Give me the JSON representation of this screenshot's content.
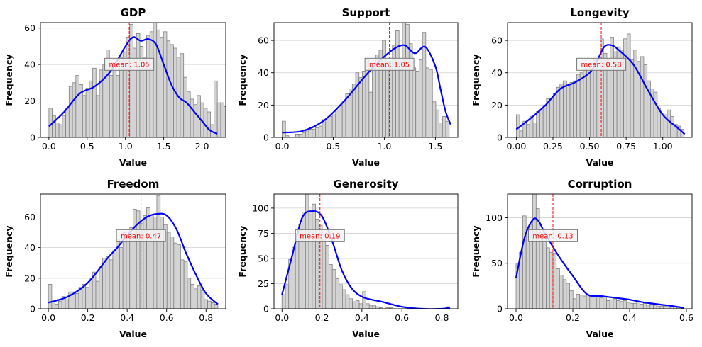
{
  "figure": {
    "colors": {
      "bar_fill": "#d3d3d3",
      "bar_edge": "#808080",
      "kde_line": "#0000ff",
      "mean_line": "#ff0000",
      "grid": "#d0d0d0",
      "mean_box_edge": "#777777",
      "mean_box_fill": "#f4f4f4"
    }
  },
  "chart_data": [
    {
      "type": "histogram",
      "title": "GDP",
      "xlabel": "Value",
      "ylabel": "Frequency",
      "xlim": [
        -0.11,
        2.31
      ],
      "ylim": [
        0,
        63
      ],
      "xticks": [
        0.0,
        0.5,
        1.0,
        1.5,
        2.0
      ],
      "xtick_labels": [
        "0.0",
        "0.5",
        "1.0",
        "1.5",
        "2.0"
      ],
      "yticks": [
        0,
        20,
        40,
        60
      ],
      "ytick_labels": [
        "0",
        "20",
        "40",
        "60"
      ],
      "grid": "horizontal",
      "mean": 1.05,
      "mean_label": "mean: 1.05",
      "bins": {
        "start": 0.0,
        "width": 0.044
      },
      "counts": [
        16,
        12,
        8,
        7,
        12,
        16,
        28,
        30,
        34,
        29,
        23,
        27,
        31,
        38,
        23,
        37,
        40,
        48,
        34,
        41,
        34,
        44,
        47,
        55,
        62,
        49,
        57,
        50,
        44,
        56,
        58,
        63,
        59,
        55,
        58,
        53,
        51,
        49,
        44,
        46,
        33,
        25,
        21,
        18,
        23,
        19,
        16,
        14,
        7,
        31,
        19,
        19,
        17,
        14,
        8,
        11,
        5,
        11
      ],
      "kde": {
        "x": [
          0.0,
          0.2,
          0.4,
          0.6,
          0.8,
          1.0,
          1.1,
          1.2,
          1.3,
          1.4,
          1.5,
          1.6,
          1.7,
          1.8,
          1.9,
          2.0,
          2.1,
          2.2
        ],
        "y": [
          6,
          14,
          24,
          28,
          36,
          50,
          55,
          53,
          54,
          51,
          40,
          29,
          22,
          19,
          14,
          9,
          4,
          2
        ]
      }
    },
    {
      "type": "histogram",
      "title": "Support",
      "xlabel": "Value",
      "ylabel": "Frequency",
      "xlim": [
        -0.08,
        1.72
      ],
      "ylim": [
        0,
        71
      ],
      "xticks": [
        0.0,
        0.5,
        1.0,
        1.5
      ],
      "xtick_labels": [
        "0.0",
        "0.5",
        "1.0",
        "1.5"
      ],
      "yticks": [
        0,
        20,
        40,
        60
      ],
      "ytick_labels": [
        "0",
        "20",
        "40",
        "60"
      ],
      "grid": "horizontal",
      "mean": 1.05,
      "mean_label": "mean: 1.05",
      "bins": {
        "start": 0.0,
        "width": 0.0327
      },
      "counts": [
        10,
        1,
        0,
        0,
        2,
        2,
        3,
        4,
        5,
        5,
        6,
        7,
        11,
        12,
        13,
        14,
        17,
        20,
        22,
        27,
        30,
        33,
        40,
        37,
        41,
        48,
        28,
        43,
        51,
        54,
        60,
        47,
        47,
        57,
        66,
        47,
        71,
        70,
        58,
        43,
        41,
        48,
        65,
        43,
        42,
        22,
        17,
        9,
        13,
        10
      ],
      "kde": {
        "x": [
          0.0,
          0.2,
          0.4,
          0.6,
          0.8,
          0.9,
          1.0,
          1.1,
          1.2,
          1.3,
          1.4,
          1.5,
          1.55,
          1.6,
          1.65
        ],
        "y": [
          3,
          4,
          10,
          22,
          37,
          44,
          50,
          55,
          57,
          52,
          56,
          44,
          30,
          16,
          8
        ]
      }
    },
    {
      "type": "histogram",
      "title": "Longevity",
      "xlabel": "Value",
      "ylabel": "Frequency",
      "xlim": [
        -0.06,
        1.2
      ],
      "ylim": [
        0,
        71
      ],
      "xticks": [
        0.0,
        0.25,
        0.5,
        0.75,
        1.0
      ],
      "xtick_labels": [
        "0.00",
        "0.25",
        "0.50",
        "0.75",
        "1.00"
      ],
      "yticks": [
        0,
        20,
        40,
        60
      ],
      "ytick_labels": [
        "0",
        "20",
        "40",
        "60"
      ],
      "grid": "horizontal",
      "mean": 0.58,
      "mean_label": "mean: 0.58",
      "bins": {
        "start": 0.0,
        "width": 0.0229
      },
      "counts": [
        14,
        4,
        10,
        8,
        13,
        9,
        16,
        17,
        20,
        24,
        24,
        27,
        31,
        33,
        35,
        33,
        34,
        35,
        39,
        40,
        42,
        44,
        42,
        48,
        48,
        61,
        52,
        48,
        62,
        53,
        56,
        54,
        61,
        64,
        48,
        54,
        47,
        50,
        45,
        35,
        30,
        28,
        18,
        15,
        14,
        17,
        13,
        8,
        7,
        5
      ],
      "kde": {
        "x": [
          0.0,
          0.1,
          0.2,
          0.3,
          0.4,
          0.5,
          0.55,
          0.6,
          0.65,
          0.7,
          0.8,
          0.9,
          1.0,
          1.1,
          1.15
        ],
        "y": [
          5,
          12,
          20,
          30,
          34,
          40,
          47,
          56,
          57,
          54,
          45,
          29,
          14,
          6,
          2
        ]
      }
    },
    {
      "type": "histogram",
      "title": "Freedom",
      "xlabel": "Value",
      "ylabel": "Frequency",
      "xlim": [
        -0.04,
        0.9
      ],
      "ylim": [
        0,
        75
      ],
      "xticks": [
        0.0,
        0.2,
        0.4,
        0.6,
        0.8
      ],
      "xtick_labels": [
        "0.0",
        "0.2",
        "0.4",
        "0.6",
        "0.8"
      ],
      "yticks": [
        0,
        20,
        40,
        60
      ],
      "ytick_labels": [
        "0",
        "20",
        "40",
        "60"
      ],
      "grid": "horizontal",
      "mean": 0.47,
      "mean_label": "mean: 0.47",
      "bins": {
        "start": 0.0,
        "width": 0.0172
      },
      "counts": [
        16,
        5,
        3,
        5,
        8,
        6,
        11,
        11,
        10,
        14,
        16,
        14,
        20,
        24,
        18,
        28,
        33,
        34,
        32,
        38,
        45,
        40,
        50,
        47,
        53,
        65,
        64,
        56,
        61,
        66,
        61,
        60,
        74,
        60,
        55,
        50,
        47,
        43,
        42,
        32,
        31,
        20,
        16,
        13,
        15,
        12,
        6,
        5,
        4,
        3
      ],
      "kde": {
        "x": [
          0.0,
          0.1,
          0.2,
          0.3,
          0.35,
          0.4,
          0.45,
          0.5,
          0.55,
          0.6,
          0.65,
          0.7,
          0.75,
          0.8,
          0.86
        ],
        "y": [
          4,
          8,
          17,
          33,
          40,
          48,
          55,
          60,
          62,
          61,
          52,
          36,
          22,
          10,
          3
        ]
      }
    },
    {
      "type": "histogram",
      "title": "Generosity",
      "xlabel": "Value",
      "ylabel": "Frequency",
      "xlim": [
        -0.04,
        0.88
      ],
      "ylim": [
        0,
        114
      ],
      "xticks": [
        0.0,
        0.2,
        0.4,
        0.6,
        0.8
      ],
      "xtick_labels": [
        "0.0",
        "0.2",
        "0.4",
        "0.6",
        "0.8"
      ],
      "yticks": [
        0,
        25,
        50,
        75,
        100
      ],
      "ytick_labels": [
        "0",
        "25",
        "50",
        "75",
        "100"
      ],
      "grid": "horizontal",
      "mean": 0.19,
      "mean_label": "mean: 0.19",
      "bins": {
        "start": 0.0,
        "width": 0.0168
      },
      "counts": [
        14,
        24,
        49,
        61,
        69,
        84,
        96,
        114,
        97,
        104,
        89,
        83,
        69,
        63,
        44,
        39,
        30,
        24,
        19,
        14,
        10,
        7,
        8,
        5,
        17,
        5,
        3,
        3,
        2,
        1,
        0,
        1,
        1,
        0,
        0,
        0,
        0,
        0,
        0,
        1,
        0,
        0,
        0,
        0,
        0,
        0,
        0,
        0,
        0,
        2
      ],
      "kde": {
        "x": [
          0.0,
          0.05,
          0.1,
          0.15,
          0.2,
          0.25,
          0.3,
          0.35,
          0.4,
          0.45,
          0.5,
          0.6,
          0.7,
          0.8,
          0.84
        ],
        "y": [
          14,
          52,
          90,
          97,
          92,
          68,
          38,
          20,
          12,
          9,
          7,
          2,
          0,
          0,
          1
        ]
      }
    },
    {
      "type": "histogram",
      "title": "Corruption",
      "xlabel": "Value",
      "ylabel": "Frequency",
      "xlim": [
        -0.03,
        0.62
      ],
      "ylim": [
        0,
        126
      ],
      "xticks": [
        0.0,
        0.2,
        0.4,
        0.6
      ],
      "xtick_labels": [
        "0.0",
        "0.2",
        "0.4",
        "0.6"
      ],
      "yticks": [
        0,
        50,
        100
      ],
      "ytick_labels": [
        "0",
        "50",
        "100"
      ],
      "grid": "horizontal",
      "mean": 0.13,
      "mean_label": "mean: 0.13",
      "bins": {
        "start": 0.0,
        "width": 0.0118
      },
      "counts": [
        50,
        62,
        102,
        82,
        92,
        126,
        110,
        84,
        80,
        67,
        62,
        61,
        44,
        37,
        32,
        28,
        20,
        11,
        16,
        15,
        14,
        15,
        13,
        15,
        14,
        12,
        13,
        9,
        10,
        11,
        9,
        8,
        9,
        7,
        6,
        6,
        8,
        5,
        6,
        4,
        5,
        4,
        3,
        3,
        3,
        2,
        2,
        2,
        2,
        1
      ],
      "kde": {
        "x": [
          0.0,
          0.03,
          0.06,
          0.08,
          0.1,
          0.15,
          0.2,
          0.25,
          0.3,
          0.35,
          0.4,
          0.45,
          0.5,
          0.55,
          0.59
        ],
        "y": [
          34,
          78,
          98,
          96,
          84,
          58,
          36,
          16,
          14,
          12,
          10,
          7,
          5,
          3,
          1
        ]
      }
    }
  ]
}
